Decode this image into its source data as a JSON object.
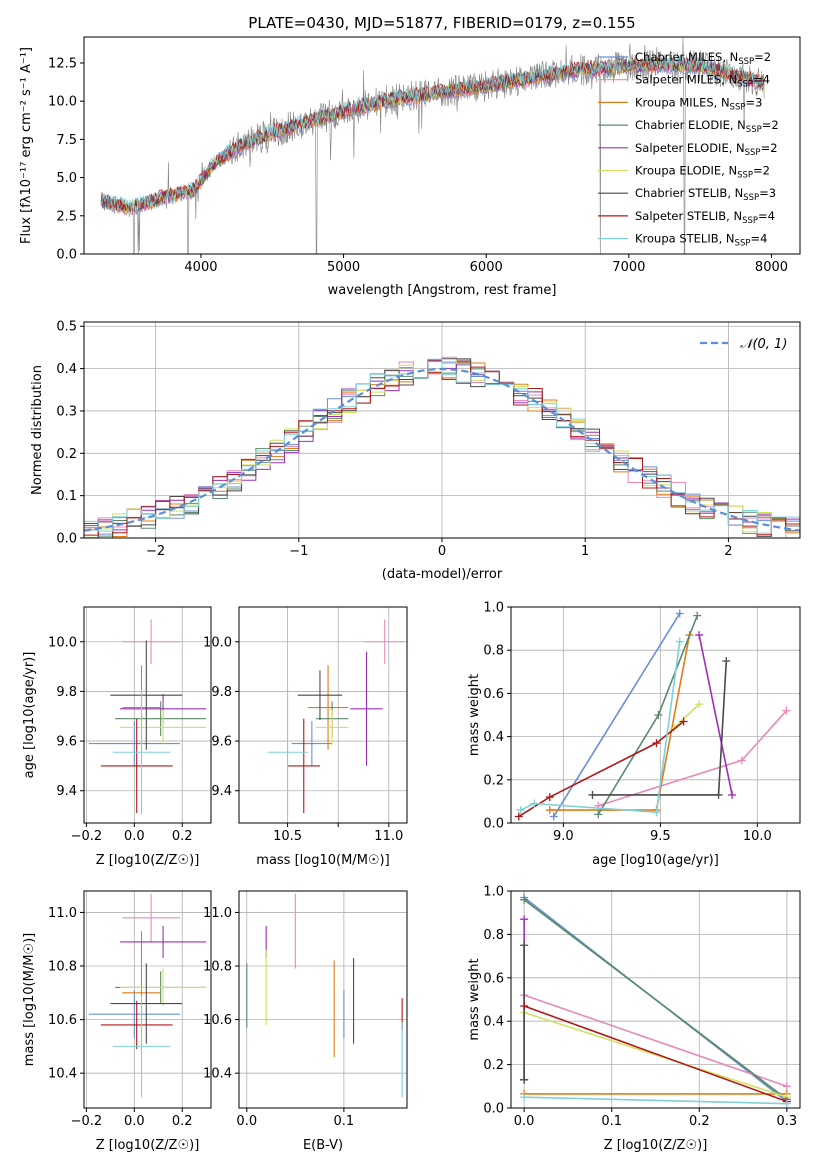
{
  "chart_data": [
    {
      "type": "line",
      "title": "PLATE=0430, MJD=51877, FIBERID=0179, z=0.155",
      "xlabel": "wavelength [Angstrom, rest frame]",
      "ylabel": "Flux [fλ10⁻¹⁷ erg cm⁻² s⁻¹ A⁻¹]",
      "xlim": [
        3180,
        8200
      ],
      "ylim": [
        0,
        14.2
      ],
      "xticks": [
        "4000",
        "5000",
        "6000",
        "7000",
        "8000"
      ],
      "yticks": [
        "0.0",
        "2.5",
        "5.0",
        "7.5",
        "10.0",
        "12.5"
      ],
      "data_range": [
        3300,
        7950
      ],
      "legend_position": "right",
      "continuum": {
        "x": [
          3300,
          3500,
          3700,
          3950,
          4100,
          4300,
          4500,
          4800,
          5100,
          5400,
          5700,
          6000,
          6300,
          6600,
          6900,
          7200,
          7500,
          7800,
          7950
        ],
        "y": [
          3.5,
          3.0,
          3.6,
          4.2,
          6.0,
          7.2,
          7.9,
          8.8,
          9.6,
          10.2,
          10.6,
          11.0,
          11.5,
          12.0,
          12.2,
          12.4,
          12.3,
          11.6,
          11.1
        ]
      },
      "series": [
        {
          "name": "Chabrier MILES, N_SSP=2",
          "color": "#6a8fd6"
        },
        {
          "name": "Salpeter MILES, N_SSP=4",
          "color": "#e88ab8"
        },
        {
          "name": "Kroupa MILES, N_SSP=3",
          "color": "#e07b1a"
        },
        {
          "name": "Chabrier ELODIE, N_SSP=2",
          "color": "#5a8a6a"
        },
        {
          "name": "Salpeter ELODIE, N_SSP=2",
          "color": "#9b30b8"
        },
        {
          "name": "Kroupa ELODIE, N_SSP=2",
          "color": "#d4e060"
        },
        {
          "name": "Chabrier STELIB, N_SSP=3",
          "color": "#4a4a4a"
        },
        {
          "name": "Salpeter STELIB, N_SSP=4",
          "color": "#b01818"
        },
        {
          "name": "Kroupa STELIB, N_SSP=4",
          "color": "#7fd0d8"
        }
      ],
      "legend_entries": [
        {
          "prefix": "Chabrier MILES, N",
          "suffix": "=2"
        },
        {
          "prefix": "Salpeter MILES, N",
          "suffix": "=4"
        },
        {
          "prefix": "Kroupa MILES, N",
          "suffix": "=3"
        },
        {
          "prefix": "Chabrier ELODIE, N",
          "suffix": "=2"
        },
        {
          "prefix": "Salpeter ELODIE, N",
          "suffix": "=2"
        },
        {
          "prefix": "Kroupa ELODIE, N",
          "suffix": "=2"
        },
        {
          "prefix": "Chabrier STELIB, N",
          "suffix": "=3"
        },
        {
          "prefix": "Salpeter STELIB, N",
          "suffix": "=4"
        },
        {
          "prefix": "Kroupa STELIB, N",
          "suffix": "=4"
        }
      ],
      "legend_subscript": "SSP",
      "data_color": "#808080"
    },
    {
      "type": "bar",
      "xlabel": "(data-model)/error",
      "ylabel": "Normed distribution",
      "xlim": [
        -2.5,
        2.5
      ],
      "ylim": [
        0,
        0.51
      ],
      "xticks": [
        "−2",
        "−1",
        "0",
        "1",
        "2"
      ],
      "yticks": [
        "0.0",
        "0.1",
        "0.2",
        "0.3",
        "0.4",
        "0.5"
      ],
      "grid": true,
      "bin_width": 0.1,
      "reference_curve": {
        "name": "𝒩(0, 1)",
        "color": "#5b8fd6",
        "style": "dashed",
        "mean": 0,
        "sigma": 1
      },
      "legend_position": "top-right"
    },
    {
      "type": "scatter",
      "xlabel": "Z [log10(Z/Z☉)]",
      "ylabel": "age [log10(age/yr)]",
      "xlim": [
        -0.21,
        0.32
      ],
      "ylim": [
        9.27,
        10.14
      ],
      "xticks": [
        "−0.2",
        "0.0",
        "0.2"
      ],
      "yticks": [
        "9.4",
        "9.6",
        "9.8",
        "10.0"
      ],
      "grid": true,
      "points": [
        {
          "x": 0.0,
          "y": 9.59,
          "xerr": 0.19,
          "yerr": 0.09,
          "color": "#6a8fd6"
        },
        {
          "x": 0.07,
          "y": 10.0,
          "xerr": 0.12,
          "yerr": 0.09,
          "color": "#e88ab8"
        },
        {
          "x": 0.03,
          "y": 9.735,
          "xerr": 0.08,
          "yerr": 0.17,
          "color": "#e07b1a"
        },
        {
          "x": 0.11,
          "y": 9.69,
          "xerr": 0.19,
          "yerr": 0.07,
          "color": "#5a8a6a"
        },
        {
          "x": 0.12,
          "y": 9.73,
          "xerr": 0.18,
          "yerr": 0.06,
          "color": "#9b30b8"
        },
        {
          "x": 0.12,
          "y": 9.655,
          "xerr": 0.18,
          "yerr": 0.07,
          "color": "#d4e060"
        },
        {
          "x": 0.05,
          "y": 9.785,
          "xerr": 0.15,
          "yerr": 0.22,
          "color": "#4a4a4a"
        },
        {
          "x": 0.01,
          "y": 9.5,
          "xerr": 0.15,
          "yerr": 0.19,
          "color": "#b01818"
        },
        {
          "x": 0.03,
          "y": 9.555,
          "xerr": 0.12,
          "yerr": 0.25,
          "color": "#7fd0d8"
        }
      ]
    },
    {
      "type": "scatter",
      "xlabel": "mass [log10(M/M☉)]",
      "ylabel": "",
      "xlim": [
        10.26,
        11.09
      ],
      "ylim": [
        9.27,
        10.14
      ],
      "xticks": [
        "10.5",
        "10.75",
        "11.0"
      ],
      "xtick_values": [
        10.5,
        10.75,
        11.0
      ],
      "xtick_text": [
        "10.5",
        "",
        "11.0"
      ],
      "yticks": [
        "9.4",
        "9.6",
        "9.8",
        "10.0"
      ],
      "grid": true,
      "points": [
        {
          "x": 10.62,
          "y": 9.59,
          "xerr": 0.1,
          "yerr": 0.09,
          "color": "#6a8fd6"
        },
        {
          "x": 10.98,
          "y": 10.0,
          "xerr": 0.1,
          "yerr": 0.09,
          "color": "#e88ab8"
        },
        {
          "x": 10.7,
          "y": 9.735,
          "xerr": 0.1,
          "yerr": 0.17,
          "color": "#e07b1a"
        },
        {
          "x": 10.72,
          "y": 9.69,
          "xerr": 0.08,
          "yerr": 0.07,
          "color": "#5a8a6a"
        },
        {
          "x": 10.89,
          "y": 9.73,
          "xerr": 0.08,
          "yerr": 0.23,
          "color": "#9b30b8"
        },
        {
          "x": 10.72,
          "y": 9.655,
          "xerr": 0.08,
          "yerr": 0.07,
          "color": "#d4e060"
        },
        {
          "x": 10.66,
          "y": 9.785,
          "xerr": 0.11,
          "yerr": 0.1,
          "color": "#4a4a4a"
        },
        {
          "x": 10.58,
          "y": 9.5,
          "xerr": 0.08,
          "yerr": 0.19,
          "color": "#b01818"
        },
        {
          "x": 10.5,
          "y": 9.555,
          "xerr": 0.1,
          "yerr": 0.25,
          "color": "#7fd0d8"
        }
      ]
    },
    {
      "type": "line",
      "xlabel": "age [log10(age/yr)]",
      "ylabel": "mass weight",
      "xlim": [
        8.73,
        10.22
      ],
      "ylim": [
        0,
        1.0
      ],
      "xticks": [
        "9.0",
        "9.5",
        "10.0"
      ],
      "yticks": [
        "0.0",
        "0.2",
        "0.4",
        "0.6",
        "0.8",
        "1.0"
      ],
      "grid": true,
      "series": [
        {
          "color": "#6a8fd6",
          "x": [
            8.95,
            9.6
          ],
          "y": [
            0.03,
            0.97
          ]
        },
        {
          "color": "#e88ab8",
          "x": [
            9.18,
            9.92,
            10.15
          ],
          "y": [
            0.08,
            0.29,
            0.52
          ]
        },
        {
          "color": "#e07b1a",
          "x": [
            8.93,
            9.48,
            9.65
          ],
          "y": [
            0.06,
            0.06,
            0.87
          ]
        },
        {
          "color": "#5a8a6a",
          "x": [
            9.18,
            9.49,
            9.69
          ],
          "y": [
            0.04,
            0.5,
            0.96
          ]
        },
        {
          "color": "#9b30b8",
          "x": [
            9.7,
            9.87
          ],
          "y": [
            0.87,
            0.13
          ]
        },
        {
          "color": "#d4e060",
          "x": [
            9.57,
            9.7
          ],
          "y": [
            0.44,
            0.55
          ]
        },
        {
          "color": "#4a4a4a",
          "x": [
            9.15,
            9.8,
            9.84
          ],
          "y": [
            0.13,
            0.13,
            0.75
          ]
        },
        {
          "color": "#b01818",
          "x": [
            8.77,
            8.93,
            9.48,
            9.62
          ],
          "y": [
            0.03,
            0.12,
            0.37,
            0.47
          ]
        },
        {
          "color": "#7fd0d8",
          "x": [
            8.78,
            8.85,
            9.48,
            9.6
          ],
          "y": [
            0.06,
            0.09,
            0.05,
            0.84
          ]
        }
      ]
    },
    {
      "type": "scatter",
      "xlabel": "Z [log10(Z/Z☉)]",
      "ylabel": "mass [log10(M/M☉)]",
      "xlim": [
        -0.21,
        0.32
      ],
      "ylim": [
        10.27,
        11.08
      ],
      "xticks": [
        "−0.2",
        "0.0",
        "0.2"
      ],
      "yticks": [
        "10.4",
        "10.6",
        "10.8",
        "11.0"
      ],
      "grid": true,
      "points": [
        {
          "x": 0.0,
          "y": 10.62,
          "xerr": 0.19,
          "yerr": 0.09,
          "color": "#6a8fd6"
        },
        {
          "x": 0.07,
          "y": 10.98,
          "xerr": 0.12,
          "yerr": 0.09,
          "color": "#e88ab8"
        },
        {
          "x": 0.03,
          "y": 10.7,
          "xerr": 0.08,
          "yerr": 0.23,
          "color": "#e07b1a"
        },
        {
          "x": 0.11,
          "y": 10.72,
          "xerr": 0.19,
          "yerr": 0.06,
          "color": "#5a8a6a"
        },
        {
          "x": 0.12,
          "y": 10.89,
          "xerr": 0.18,
          "yerr": 0.06,
          "color": "#9b30b8"
        },
        {
          "x": 0.12,
          "y": 10.72,
          "xerr": 0.18,
          "yerr": 0.07,
          "color": "#d4e060"
        },
        {
          "x": 0.05,
          "y": 10.66,
          "xerr": 0.15,
          "yerr": 0.15,
          "color": "#4a4a4a"
        },
        {
          "x": 0.01,
          "y": 10.58,
          "xerr": 0.15,
          "yerr": 0.09,
          "color": "#b01818"
        },
        {
          "x": 0.03,
          "y": 10.5,
          "xerr": 0.12,
          "yerr": 0.19,
          "color": "#7fd0d8"
        }
      ]
    },
    {
      "type": "scatter",
      "xlabel": "E(B-V)",
      "ylabel": "",
      "xlim": [
        -0.008,
        0.165
      ],
      "ylim": [
        10.27,
        11.08
      ],
      "xticks": [
        "0.0",
        "0.1"
      ],
      "yticks": [
        "10.4",
        "10.6",
        "10.8",
        "11.0"
      ],
      "grid": true,
      "points": [
        {
          "x": 0.1,
          "y": 10.62,
          "xerr": 0,
          "yerr": 0.09,
          "color": "#6a8fd6"
        },
        {
          "x": 0.05,
          "y": 10.93,
          "xerr": 0,
          "yerr": 0.14,
          "color": "#e88ab8"
        },
        {
          "x": 0.09,
          "y": 10.64,
          "xerr": 0,
          "yerr": 0.18,
          "color": "#e07b1a"
        },
        {
          "x": 0.0,
          "y": 10.69,
          "xerr": 0,
          "yerr": 0.12,
          "color": "#5a8a6a"
        },
        {
          "x": 0.02,
          "y": 10.89,
          "xerr": 0,
          "yerr": 0.06,
          "color": "#9b30b8"
        },
        {
          "x": 0.02,
          "y": 10.72,
          "xerr": 0,
          "yerr": 0.14,
          "color": "#d4e060"
        },
        {
          "x": 0.11,
          "y": 10.67,
          "xerr": 0,
          "yerr": 0.16,
          "color": "#4a4a4a"
        },
        {
          "x": 0.16,
          "y": 10.62,
          "xerr": 0,
          "yerr": 0.06,
          "color": "#b01818"
        },
        {
          "x": 0.16,
          "y": 10.45,
          "xerr": 0,
          "yerr": 0.14,
          "color": "#7fd0d8"
        }
      ]
    },
    {
      "type": "line",
      "xlabel": "Z [log10(Z/Z☉)]",
      "ylabel": "mass weight",
      "xlim": [
        -0.015,
        0.315
      ],
      "ylim": [
        0,
        1.0
      ],
      "xticks": [
        "0.0",
        "0.1",
        "0.2",
        "0.3"
      ],
      "yticks": [
        "0.0",
        "0.2",
        "0.4",
        "0.6",
        "0.8",
        "1.0"
      ],
      "grid": true,
      "series": [
        {
          "color": "#6a8fd6",
          "x": [
            0.0,
            0.3
          ],
          "y": [
            0.97,
            0.03
          ]
        },
        {
          "color": "#e88ab8",
          "x": [
            0.0,
            0.3
          ],
          "y": [
            0.52,
            0.1
          ]
        },
        {
          "color": "#e07b1a",
          "x": [
            0.0,
            0.3
          ],
          "y": [
            0.065,
            0.065
          ]
        },
        {
          "color": "#5a8a6a",
          "x": [
            0.0,
            0.3
          ],
          "y": [
            0.96,
            0.04
          ]
        },
        {
          "color": "#9b30b8",
          "x": [
            0.0,
            0.0
          ],
          "y": [
            0.87,
            0.13
          ]
        },
        {
          "color": "#d4e060",
          "x": [
            0.0,
            0.3
          ],
          "y": [
            0.44,
            0.05
          ]
        },
        {
          "color": "#4a4a4a",
          "x": [
            0.0,
            0.0
          ],
          "y": [
            0.75,
            0.13
          ]
        },
        {
          "color": "#b01818",
          "x": [
            0.0,
            0.3
          ],
          "y": [
            0.47,
            0.03
          ]
        },
        {
          "color": "#7fd0d8",
          "x": [
            0.0,
            0.3
          ],
          "y": [
            0.05,
            0.02
          ]
        }
      ]
    }
  ]
}
